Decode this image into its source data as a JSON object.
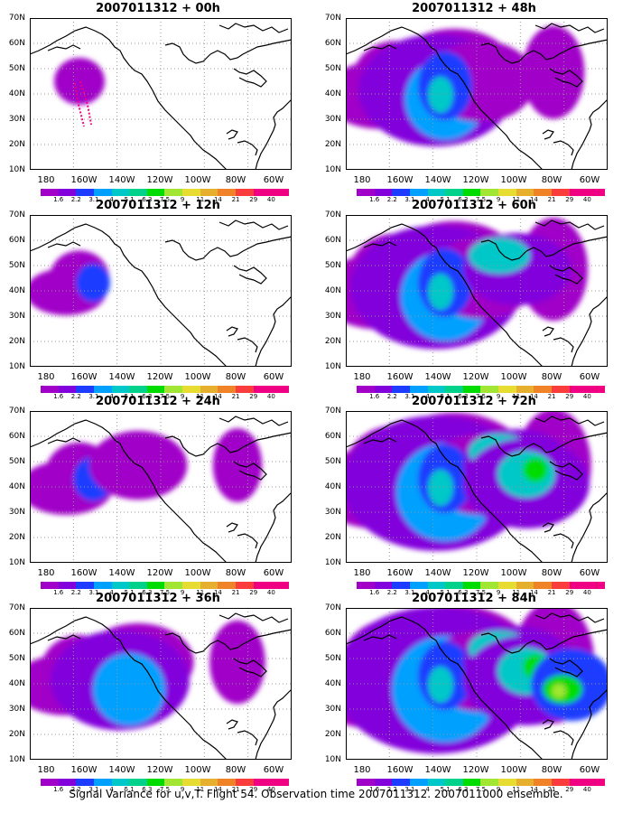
{
  "panels": [
    {
      "title": "2007011312 + 00h",
      "level": 0
    },
    {
      "title": "2007011312 + 48h",
      "level": 4
    },
    {
      "title": "2007011312 + 12h",
      "level": 1
    },
    {
      "title": "2007011312 + 60h",
      "level": 5
    },
    {
      "title": "2007011312 + 24h",
      "level": 2
    },
    {
      "title": "2007011312 + 72h",
      "level": 6
    },
    {
      "title": "2007011312 + 36h",
      "level": 3
    },
    {
      "title": "2007011312 + 84h",
      "level": 7
    }
  ],
  "lat_labels": [
    "70N",
    "60N",
    "50N",
    "40N",
    "30N",
    "20N",
    "10N"
  ],
  "lon_labels": [
    "180",
    "160W",
    "140W",
    "120W",
    "100W",
    "80W",
    "60W"
  ],
  "colorbar_labels": [
    "1.6",
    "2.2",
    "3.1",
    "4",
    "5.1",
    "6.3",
    "7.5",
    "9",
    "11",
    "14",
    "21",
    "29",
    "40"
  ],
  "colorbar_colors": [
    "#a000c8",
    "#8200dc",
    "#1e3cff",
    "#00a0ff",
    "#00c8c8",
    "#00d28c",
    "#00dc00",
    "#a0e632",
    "#e6dc32",
    "#e6af2d",
    "#f08228",
    "#fa3c3c",
    "#f00082"
  ],
  "caption": "Signal Variance for u,v,T. Flight 54. Observation time 2007011312. 2007011000 ensemble."
}
